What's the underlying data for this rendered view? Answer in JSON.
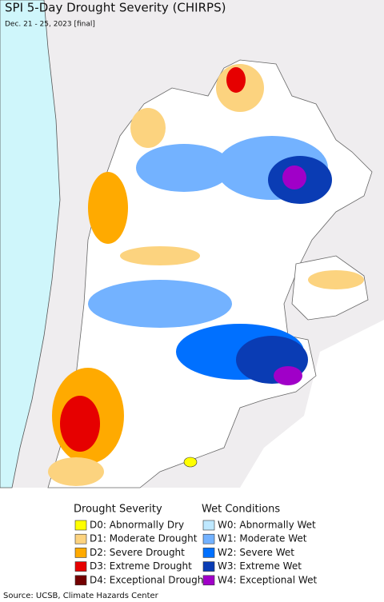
{
  "title": "SPI 5-Day Drought Severity (CHIRPS)",
  "subtitle": "Dec. 21 - 25, 2023 [final]",
  "legend": {
    "drought": {
      "title": "Drought Severity",
      "items": [
        {
          "label": "D0: Abnormally Dry",
          "color": "#ffff00"
        },
        {
          "label": "D1: Moderate Drought",
          "color": "#fcd37f"
        },
        {
          "label": "D2: Severe Drought",
          "color": "#ffaa00"
        },
        {
          "label": "D3: Extreme Drought",
          "color": "#e60000"
        },
        {
          "label": "D4: Exceptional Drought",
          "color": "#730000"
        }
      ]
    },
    "wet": {
      "title": "Wet Conditions",
      "items": [
        {
          "label": "W0: Abnormally Wet",
          "color": "#bee8ff"
        },
        {
          "label": "W1: Moderate Wet",
          "color": "#73b2ff"
        },
        {
          "label": "W2: Severe Wet",
          "color": "#0070ff"
        },
        {
          "label": "W3: Extreme Wet",
          "color": "#0a3cb4"
        },
        {
          "label": "W4: Exceptional Wet",
          "color": "#a000c8"
        }
      ]
    }
  },
  "source": "Source: UCSB, Climate Hazards Center"
}
